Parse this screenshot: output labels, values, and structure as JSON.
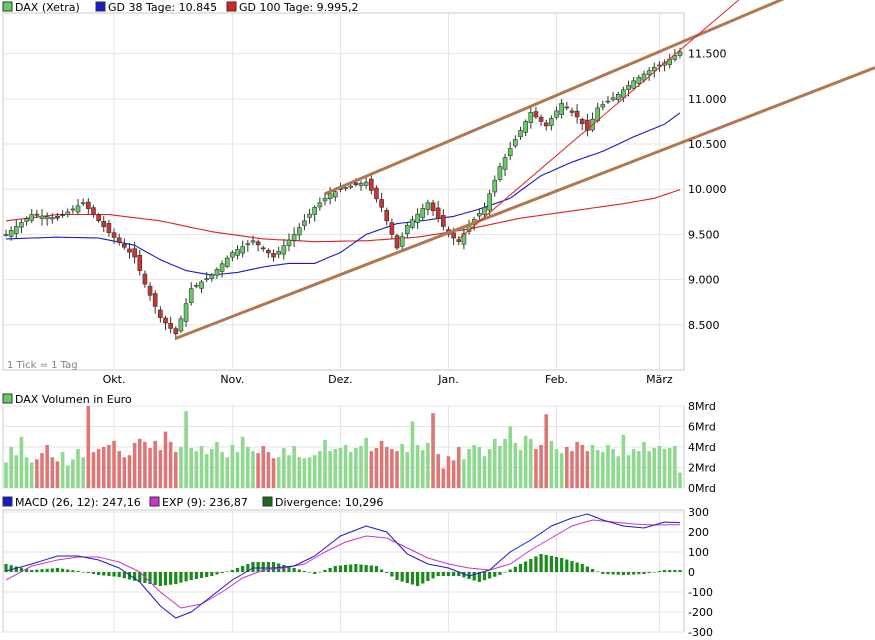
{
  "chart_data": [
    {
      "type": "candlestick",
      "legend": [
        {
          "name": "DAX (Xetra)",
          "color": "#66cc66"
        },
        {
          "name": "GD 38 Tage: 10.845",
          "color": "#1a1acc"
        },
        {
          "name": "GD 100 Tage: 9.995,2",
          "color": "#dd2222"
        }
      ],
      "note": "1 Tick = 1 Tag",
      "y_ticks": [
        "8.500",
        "9.000",
        "9.500",
        "10.000",
        "10.500",
        "11.000",
        "11.500"
      ],
      "y_tick_values": [
        8500,
        9000,
        9500,
        10000,
        10500,
        11000,
        11500
      ],
      "ylim": [
        8000,
        11950
      ],
      "x_ticks": [
        {
          "label": "Okt.",
          "index": 21
        },
        {
          "label": "Nov.",
          "index": 44
        },
        {
          "label": "Dez.",
          "index": 65
        },
        {
          "label": "Jan.",
          "index": 86
        },
        {
          "label": "Feb.",
          "index": 107
        },
        {
          "label": "März",
          "index": 127
        }
      ],
      "n_days": 132,
      "price_anchors": [
        [
          0,
          9500
        ],
        [
          5,
          9720
        ],
        [
          10,
          9680
        ],
        [
          15,
          9850
        ],
        [
          20,
          9520
        ],
        [
          25,
          9250
        ],
        [
          27,
          8950
        ],
        [
          30,
          8580
        ],
        [
          33,
          8400
        ],
        [
          36,
          8900
        ],
        [
          40,
          9050
        ],
        [
          44,
          9300
        ],
        [
          48,
          9430
        ],
        [
          52,
          9250
        ],
        [
          56,
          9500
        ],
        [
          60,
          9800
        ],
        [
          63,
          9950
        ],
        [
          66,
          10020
        ],
        [
          70,
          10080
        ],
        [
          73,
          9800
        ],
        [
          76,
          9350
        ],
        [
          78,
          9600
        ],
        [
          82,
          9850
        ],
        [
          86,
          9500
        ],
        [
          88,
          9420
        ],
        [
          90,
          9600
        ],
        [
          93,
          9800
        ],
        [
          96,
          10250
        ],
        [
          99,
          10550
        ],
        [
          102,
          10850
        ],
        [
          105,
          10700
        ],
        [
          108,
          10950
        ],
        [
          111,
          10800
        ],
        [
          113,
          10650
        ],
        [
          115,
          10900
        ],
        [
          119,
          11050
        ],
        [
          122,
          11200
        ],
        [
          126,
          11350
        ],
        [
          128,
          11400
        ],
        [
          131,
          11520
        ]
      ],
      "gd38_anchors": [
        [
          0,
          9450
        ],
        [
          10,
          9470
        ],
        [
          18,
          9460
        ],
        [
          25,
          9380
        ],
        [
          30,
          9220
        ],
        [
          35,
          9100
        ],
        [
          40,
          9050
        ],
        [
          45,
          9080
        ],
        [
          50,
          9140
        ],
        [
          55,
          9180
        ],
        [
          60,
          9180
        ],
        [
          65,
          9300
        ],
        [
          70,
          9500
        ],
        [
          76,
          9620
        ],
        [
          82,
          9660
        ],
        [
          87,
          9700
        ],
        [
          92,
          9780
        ],
        [
          98,
          9900
        ],
        [
          104,
          10150
        ],
        [
          110,
          10300
        ],
        [
          116,
          10420
        ],
        [
          122,
          10580
        ],
        [
          128,
          10720
        ],
        [
          131,
          10845
        ]
      ],
      "gd100_anchors": [
        [
          0,
          9650
        ],
        [
          10,
          9720
        ],
        [
          20,
          9720
        ],
        [
          30,
          9650
        ],
        [
          40,
          9530
        ],
        [
          50,
          9450
        ],
        [
          60,
          9420
        ],
        [
          70,
          9430
        ],
        [
          80,
          9470
        ],
        [
          90,
          9560
        ],
        [
          100,
          9680
        ],
        [
          110,
          9760
        ],
        [
          120,
          9840
        ],
        [
          126,
          9900
        ],
        [
          131,
          9995.2
        ]
      ],
      "trend_lines": [
        {
          "from": [
            33,
            8350
          ],
          "to": [
            131,
            10510
          ]
        },
        {
          "from": [
            62,
            9950
          ],
          "to": [
            131,
            11620
          ]
        },
        {
          "from": [
            88,
            9450
          ],
          "to": [
            131,
            11540
          ]
        }
      ]
    },
    {
      "type": "bar",
      "title": "DAX Volumen in Euro",
      "y_ticks": [
        "0Mrd",
        "2Mrd",
        "4Mrd",
        "6Mrd",
        "8Mrd"
      ],
      "ylim": [
        0,
        8
      ],
      "unit": "Mrd",
      "volumes": [
        2.5,
        4.0,
        3.2,
        5.0,
        3.0,
        2.5,
        2.8,
        3.4,
        4.2,
        3.0,
        2.6,
        3.5,
        2.2,
        2.8,
        3.8,
        3.0,
        8.0,
        3.5,
        3.8,
        4.0,
        4.2,
        4.6,
        3.6,
        3.0,
        3.2,
        4.4,
        4.8,
        4.5,
        3.9,
        4.6,
        3.7,
        5.5,
        4.5,
        3.5,
        4.0,
        7.5,
        3.9,
        3.6,
        4.1,
        3.3,
        3.8,
        4.5,
        3.5,
        3.0,
        4.2,
        3.5,
        5.0,
        4.0,
        3.6,
        3.4,
        4.1,
        3.5,
        2.9,
        3.0,
        3.9,
        3.2,
        4.1,
        3.0,
        2.9,
        3.0,
        3.2,
        3.6,
        4.7,
        3.6,
        3.8,
        3.9,
        4.2,
        3.5,
        3.9,
        4.1,
        4.9,
        3.6,
        3.9,
        4.6,
        4.0,
        3.8,
        3.6,
        4.3,
        3.5,
        6.5,
        4.2,
        3.7,
        4.4,
        7.3,
        3.3,
        1.9,
        3.1,
        2.7,
        4.0,
        2.8,
        3.8,
        4.2,
        4.0,
        3.1,
        3.8,
        4.8,
        4.1,
        4.8,
        6.0,
        4.4,
        3.7,
        5.1,
        4.8,
        3.8,
        4.2,
        7.2,
        4.6,
        3.8,
        3.4,
        4.0,
        3.6,
        4.5,
        4.2,
        3.6,
        4.2,
        3.7,
        3.5,
        4.2,
        3.8,
        3.1,
        5.2,
        3.2,
        3.8,
        3.6,
        4.5,
        3.6,
        3.9,
        4.1,
        3.8,
        3.9,
        4.1,
        1.5
      ]
    },
    {
      "type": "line",
      "legend": [
        {
          "name": "MACD (26, 12): 247,16",
          "color": "#1a1acc"
        },
        {
          "name": "EXP (9): 236,87",
          "color": "#cc33cc"
        },
        {
          "name": "Divergence: 10,296",
          "color": "#1a6a1a"
        }
      ],
      "y_ticks": [
        "-300",
        "-200",
        "-100",
        "0",
        "100",
        "200",
        "300"
      ],
      "y_tick_values": [
        -300,
        -200,
        -100,
        0,
        100,
        200,
        300
      ],
      "ylim": [
        -300,
        300
      ],
      "macd_anchors": [
        [
          0,
          5
        ],
        [
          5,
          40
        ],
        [
          10,
          80
        ],
        [
          14,
          80
        ],
        [
          18,
          60
        ],
        [
          22,
          20
        ],
        [
          26,
          -50
        ],
        [
          30,
          -170
        ],
        [
          33,
          -230
        ],
        [
          36,
          -200
        ],
        [
          40,
          -120
        ],
        [
          44,
          -40
        ],
        [
          48,
          20
        ],
        [
          52,
          20
        ],
        [
          56,
          30
        ],
        [
          60,
          80
        ],
        [
          65,
          180
        ],
        [
          70,
          230
        ],
        [
          74,
          200
        ],
        [
          78,
          90
        ],
        [
          82,
          40
        ],
        [
          86,
          20
        ],
        [
          90,
          -20
        ],
        [
          94,
          10
        ],
        [
          98,
          100
        ],
        [
          102,
          160
        ],
        [
          106,
          230
        ],
        [
          110,
          270
        ],
        [
          113,
          290
        ],
        [
          116,
          260
        ],
        [
          120,
          230
        ],
        [
          124,
          220
        ],
        [
          128,
          250
        ],
        [
          131,
          247.16
        ]
      ],
      "exp_anchors": [
        [
          0,
          -40
        ],
        [
          5,
          30
        ],
        [
          10,
          60
        ],
        [
          14,
          75
        ],
        [
          18,
          75
        ],
        [
          22,
          50
        ],
        [
          26,
          0
        ],
        [
          30,
          -100
        ],
        [
          34,
          -180
        ],
        [
          38,
          -160
        ],
        [
          42,
          -100
        ],
        [
          46,
          -30
        ],
        [
          50,
          10
        ],
        [
          54,
          20
        ],
        [
          58,
          40
        ],
        [
          62,
          100
        ],
        [
          66,
          150
        ],
        [
          70,
          180
        ],
        [
          74,
          170
        ],
        [
          78,
          120
        ],
        [
          82,
          70
        ],
        [
          86,
          40
        ],
        [
          90,
          20
        ],
        [
          94,
          10
        ],
        [
          98,
          40
        ],
        [
          102,
          110
        ],
        [
          106,
          170
        ],
        [
          110,
          230
        ],
        [
          114,
          260
        ],
        [
          118,
          250
        ],
        [
          122,
          240
        ],
        [
          126,
          235
        ],
        [
          131,
          236.87
        ]
      ],
      "divergence_anchors": [
        [
          0,
          40
        ],
        [
          5,
          10
        ],
        [
          10,
          20
        ],
        [
          14,
          5
        ],
        [
          18,
          -15
        ],
        [
          22,
          -25
        ],
        [
          26,
          -50
        ],
        [
          30,
          -70
        ],
        [
          33,
          -60
        ],
        [
          36,
          -40
        ],
        [
          40,
          -20
        ],
        [
          44,
          10
        ],
        [
          48,
          50
        ],
        [
          52,
          50
        ],
        [
          56,
          20
        ],
        [
          60,
          -10
        ],
        [
          64,
          30
        ],
        [
          68,
          40
        ],
        [
          72,
          30
        ],
        [
          76,
          -40
        ],
        [
          80,
          -70
        ],
        [
          84,
          -20
        ],
        [
          88,
          -20
        ],
        [
          92,
          -50
        ],
        [
          96,
          -15
        ],
        [
          100,
          40
        ],
        [
          104,
          90
        ],
        [
          108,
          70
        ],
        [
          112,
          40
        ],
        [
          116,
          -10
        ],
        [
          120,
          -15
        ],
        [
          124,
          -10
        ],
        [
          128,
          10
        ],
        [
          131,
          10.296
        ]
      ]
    }
  ]
}
